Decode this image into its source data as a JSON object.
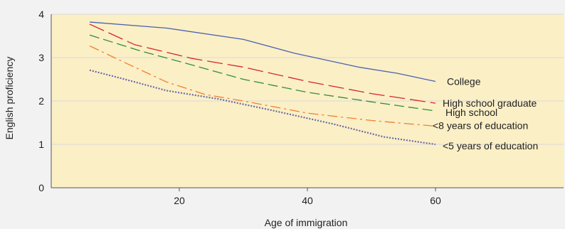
{
  "chart_data": {
    "type": "line",
    "title": "",
    "xlabel": "Age of immigration",
    "ylabel": "English proficiency",
    "xlim": [
      0,
      80
    ],
    "ylim": [
      0,
      4
    ],
    "xticks": [
      20,
      40,
      60
    ],
    "yticks": [
      0,
      1,
      2,
      3,
      4
    ],
    "grid": "horizontal",
    "colors": {
      "plot_background": "#fbefc6",
      "page_background": "#f2f2f2",
      "gridline": "#d9d9d9"
    },
    "series": [
      {
        "name": "College",
        "color": "#4a62b0",
        "dash": "solid",
        "points": [
          [
            6,
            3.82
          ],
          [
            18,
            3.68
          ],
          [
            30,
            3.42
          ],
          [
            38,
            3.1
          ],
          [
            48,
            2.78
          ],
          [
            54,
            2.64
          ],
          [
            60,
            2.45
          ]
        ]
      },
      {
        "name": "High school graduate",
        "color": "#d7262b",
        "dash": "long-dash",
        "points": [
          [
            6,
            3.77
          ],
          [
            13,
            3.3
          ],
          [
            22,
            2.98
          ],
          [
            30,
            2.78
          ],
          [
            40,
            2.45
          ],
          [
            50,
            2.17
          ],
          [
            60,
            1.95
          ]
        ]
      },
      {
        "name": "High school",
        "color": "#2f8f3a",
        "dash": "dash",
        "points": [
          [
            6,
            3.52
          ],
          [
            14,
            3.15
          ],
          [
            22,
            2.83
          ],
          [
            30,
            2.5
          ],
          [
            40,
            2.2
          ],
          [
            50,
            1.98
          ],
          [
            60,
            1.77
          ]
        ]
      },
      {
        "name": "<8 years of education",
        "color": "#f08030",
        "dash": "dash-dot",
        "points": [
          [
            6,
            3.27
          ],
          [
            12,
            2.85
          ],
          [
            18,
            2.44
          ],
          [
            24,
            2.15
          ],
          [
            30,
            2.0
          ],
          [
            40,
            1.72
          ],
          [
            50,
            1.55
          ],
          [
            60,
            1.42
          ]
        ]
      },
      {
        "name": "<5 years of education",
        "color": "#6a6aa8",
        "dash": "dotted",
        "points": [
          [
            6,
            2.71
          ],
          [
            12,
            2.48
          ],
          [
            18,
            2.24
          ],
          [
            26,
            2.05
          ],
          [
            34,
            1.8
          ],
          [
            44,
            1.47
          ],
          [
            52,
            1.17
          ],
          [
            60,
            1.0
          ]
        ]
      }
    ]
  }
}
